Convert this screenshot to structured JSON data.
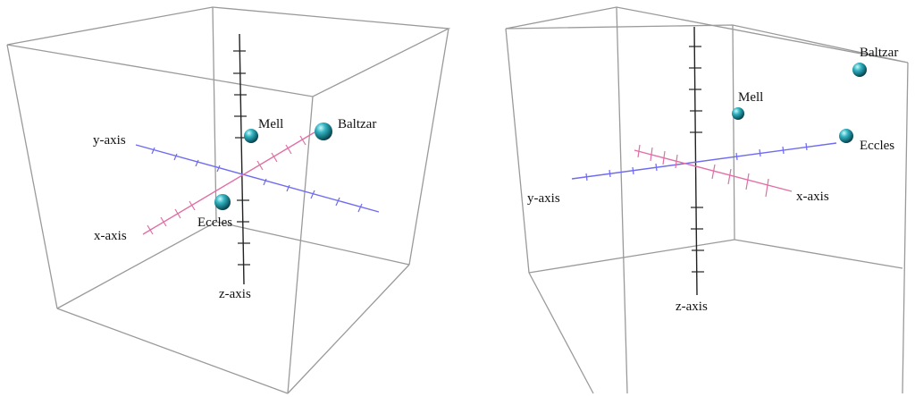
{
  "views": [
    {
      "axes": {
        "x": "x-axis",
        "y": "y-axis",
        "z": "z-axis"
      },
      "points": [
        {
          "label": "Mell"
        },
        {
          "label": "Baltzar"
        },
        {
          "label": "Eccles"
        }
      ]
    },
    {
      "axes": {
        "x": "x-axis",
        "y": "y-axis",
        "z": "z-axis"
      },
      "points": [
        {
          "label": "Mell"
        },
        {
          "label": "Baltzar"
        },
        {
          "label": "Eccles"
        }
      ]
    }
  ],
  "colors": {
    "x_axis": "#e16fa6",
    "y_axis": "#6f6cf0",
    "z_axis": "#222222",
    "cube_edges": "#9a9a9a",
    "sphere": "#1e8d9a"
  }
}
